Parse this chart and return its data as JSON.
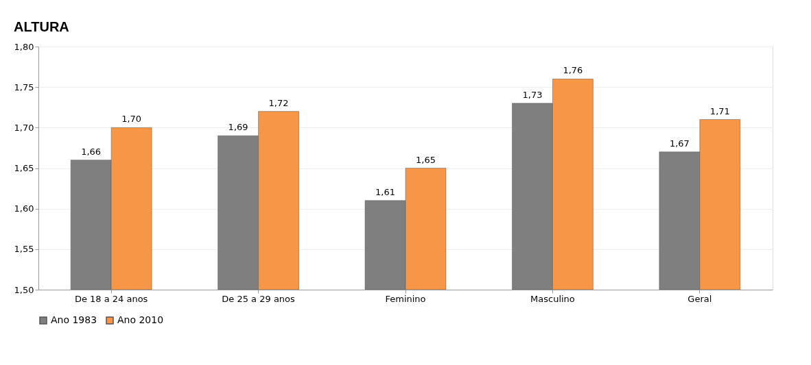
{
  "chart_data": {
    "type": "bar",
    "title": "ALTURA",
    "categories": [
      "De 18 a 24 anos",
      "De 25 a 29 anos",
      "Feminino",
      "Masculino",
      "Geral"
    ],
    "series": [
      {
        "name": "Ano 1983",
        "color": "#7f7f7f",
        "values": [
          1.66,
          1.69,
          1.61,
          1.73,
          1.67
        ],
        "value_labels": [
          "1,66",
          "1,69",
          "1,61",
          "1,73",
          "1,67"
        ]
      },
      {
        "name": "Ano 2010",
        "color": "#f79646",
        "values": [
          1.7,
          1.72,
          1.65,
          1.76,
          1.71
        ],
        "value_labels": [
          "1,70",
          "1,72",
          "1,65",
          "1,76",
          "1,71"
        ]
      }
    ],
    "ylim": [
      1.5,
      1.8
    ],
    "yticks": [
      {
        "value": 1.5,
        "label": "1,50"
      },
      {
        "value": 1.55,
        "label": "1,55"
      },
      {
        "value": 1.6,
        "label": "1,60"
      },
      {
        "value": 1.65,
        "label": "1,65"
      },
      {
        "value": 1.7,
        "label": "1,70"
      },
      {
        "value": 1.75,
        "label": "1,75"
      },
      {
        "value": 1.8,
        "label": "1,80"
      }
    ],
    "grid": "y",
    "legend": "bottom"
  }
}
